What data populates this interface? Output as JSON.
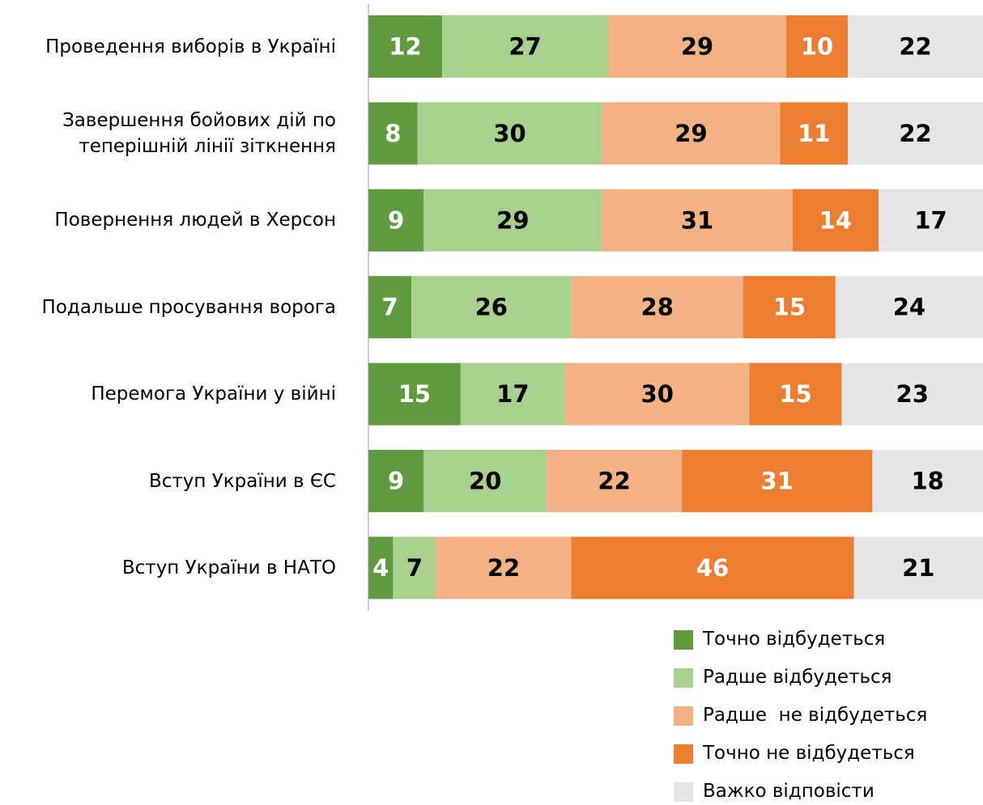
{
  "chart_data": {
    "type": "stacked-bar-horizontal",
    "categories": [
      "Проведення виборів в Україні",
      "Завершення бойових дій по\nтеперішній лінії зіткнення",
      "Повернення людей в Херсон",
      "Подальше просування ворога",
      "Перемога України у війні",
      "Вступ України в ЄС",
      "Вступ України в НАТО"
    ],
    "series": [
      {
        "name": "Точно відбудеться",
        "color": "#619b3f",
        "label_color": "#ffffff",
        "values": [
          12,
          8,
          9,
          7,
          15,
          9,
          4
        ]
      },
      {
        "name": "Радше відбудеться",
        "color": "#a9d18e",
        "label_color": "#000000",
        "values": [
          27,
          30,
          29,
          26,
          17,
          20,
          7
        ]
      },
      {
        "name": "Радше  не відбудеться",
        "color": "#f4b183",
        "label_color": "#000000",
        "values": [
          29,
          29,
          31,
          28,
          30,
          22,
          22
        ]
      },
      {
        "name": "Точно не відбудеться",
        "color": "#ed7d31",
        "label_color": "#ffffff",
        "values": [
          10,
          11,
          14,
          15,
          15,
          31,
          46
        ]
      },
      {
        "name": "Важко відповісти",
        "color": "#e7e6e6",
        "label_color": "#000000",
        "values": [
          22,
          22,
          17,
          24,
          23,
          18,
          21
        ]
      }
    ]
  }
}
